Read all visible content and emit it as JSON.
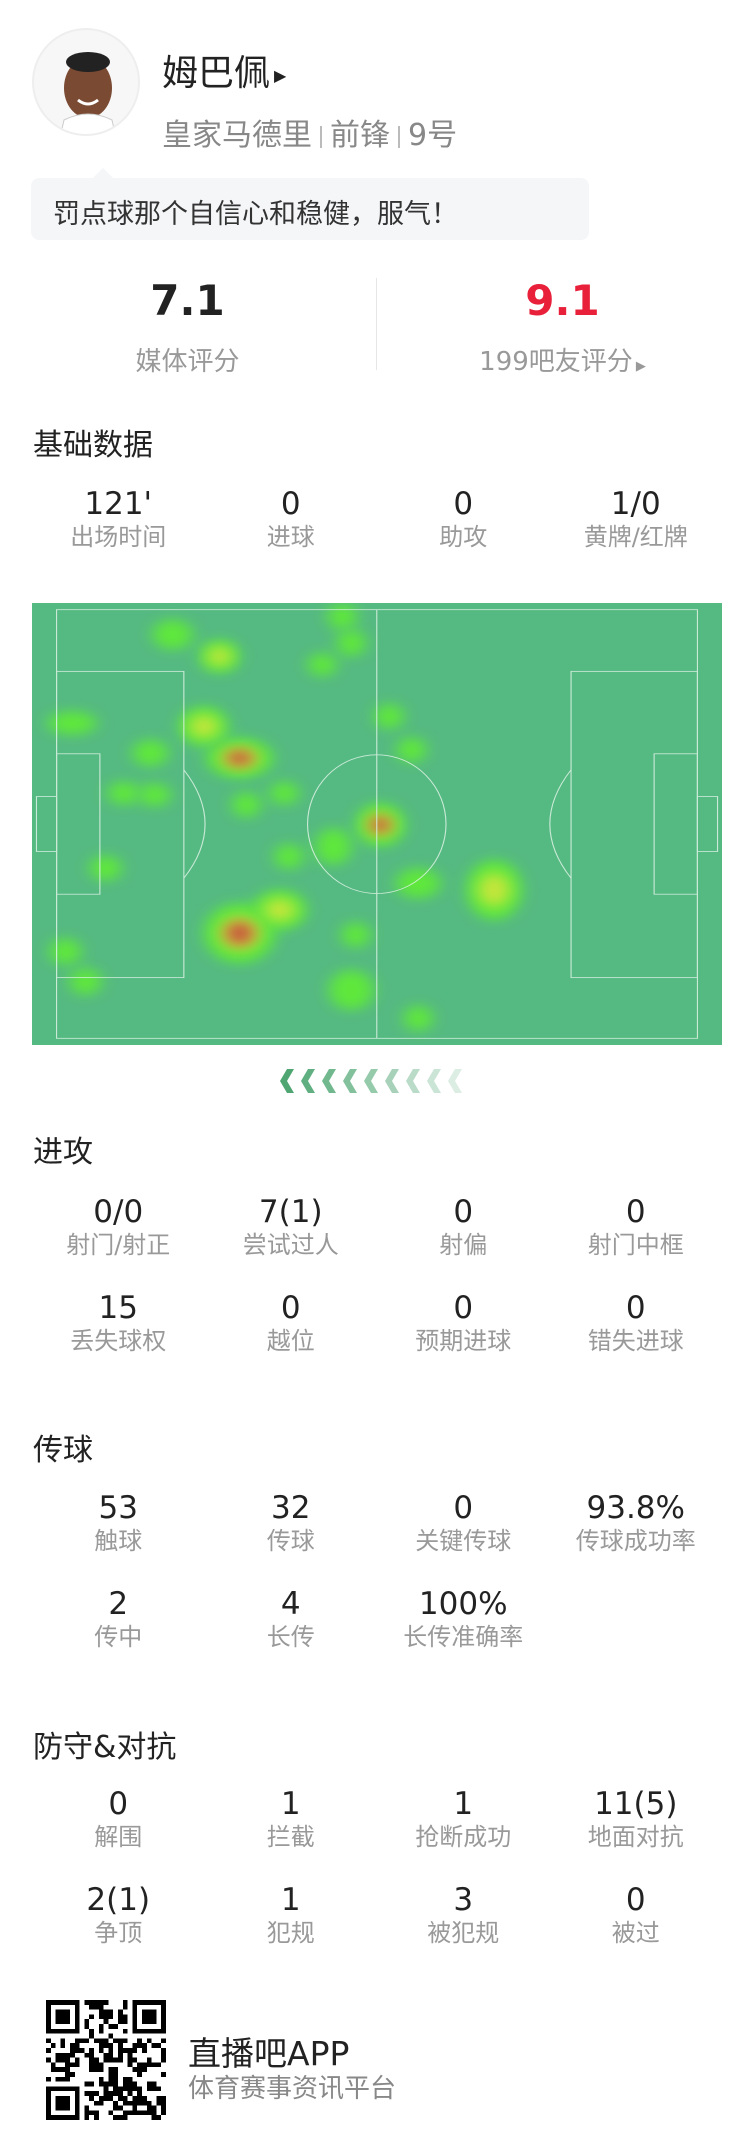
{
  "player": {
    "name": "姆巴佩",
    "team": "皇家马德里",
    "position": "前锋",
    "number": "9号",
    "avatar_icon": "player-photo"
  },
  "comment": "罚点球那个自信心和稳健，服气！",
  "ratings": {
    "media": {
      "value": "7.1",
      "label": "媒体评分"
    },
    "fans": {
      "value": "9.1",
      "label": "199吧友评分",
      "color": "#e8203a"
    }
  },
  "basic": {
    "title": "基础数据",
    "items": [
      {
        "v": "121'",
        "l": "出场时间"
      },
      {
        "v": "0",
        "l": "进球"
      },
      {
        "v": "0",
        "l": "助攻"
      },
      {
        "v": "1/0",
        "l": "黄牌/红牌"
      }
    ]
  },
  "attack": {
    "title": "进攻",
    "items": [
      {
        "v": "0/0",
        "l": "射门/射正"
      },
      {
        "v": "7(1)",
        "l": "尝试过人"
      },
      {
        "v": "0",
        "l": "射偏"
      },
      {
        "v": "0",
        "l": "射门中框"
      },
      {
        "v": "15",
        "l": "丢失球权"
      },
      {
        "v": "0",
        "l": "越位"
      },
      {
        "v": "0",
        "l": "预期进球"
      },
      {
        "v": "0",
        "l": "错失进球"
      }
    ]
  },
  "passing": {
    "title": "传球",
    "items": [
      {
        "v": "53",
        "l": "触球"
      },
      {
        "v": "32",
        "l": "传球"
      },
      {
        "v": "0",
        "l": "关键传球"
      },
      {
        "v": "93.8%",
        "l": "传球成功率"
      },
      {
        "v": "2",
        "l": "传中"
      },
      {
        "v": "4",
        "l": "长传"
      },
      {
        "v": "100%",
        "l": "长传准确率"
      }
    ]
  },
  "defense": {
    "title": "防守&对抗",
    "items": [
      {
        "v": "0",
        "l": "解围"
      },
      {
        "v": "1",
        "l": "拦截"
      },
      {
        "v": "1",
        "l": "抢断成功"
      },
      {
        "v": "11(5)",
        "l": "地面对抗"
      },
      {
        "v": "2(1)",
        "l": "争顶"
      },
      {
        "v": "1",
        "l": "犯规"
      },
      {
        "v": "3",
        "l": "被犯规"
      },
      {
        "v": "0",
        "l": "被过"
      }
    ]
  },
  "heatmap": {
    "pitch_color": "#55b982",
    "direction": "attacking-left"
  },
  "footer": {
    "app": "直播吧APP",
    "tagline": "体育赛事资讯平台",
    "qr_icon": "qr-code"
  }
}
